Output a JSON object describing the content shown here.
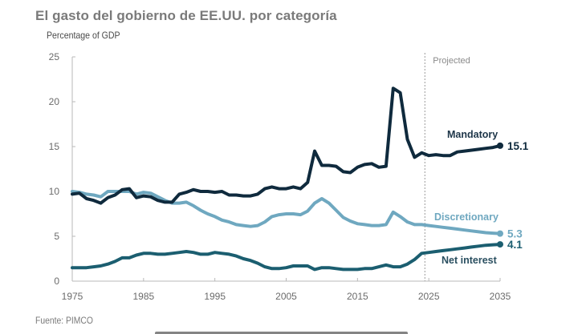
{
  "page": {
    "title": "El gasto del gobierno de EE.UU.  por categoría",
    "source": "Fuente: PIMCO"
  },
  "chart_data": {
    "type": "line",
    "title": "El gasto del gobierno de EE.UU.  por categoría",
    "xlabel": "",
    "ylabel": "Percentage of GDP",
    "xlim": [
      1975,
      2035
    ],
    "ylim": [
      0,
      25
    ],
    "x_ticks": [
      1975,
      1985,
      1995,
      2005,
      2015,
      2025,
      2035
    ],
    "y_ticks": [
      0,
      5,
      10,
      15,
      20,
      25
    ],
    "grid": false,
    "projection_start": 2024,
    "projection_label": "Projected",
    "x": [
      1975,
      1976,
      1977,
      1978,
      1979,
      1980,
      1981,
      1982,
      1983,
      1984,
      1985,
      1986,
      1987,
      1988,
      1989,
      1990,
      1991,
      1992,
      1993,
      1994,
      1995,
      1996,
      1997,
      1998,
      1999,
      2000,
      2001,
      2002,
      2003,
      2004,
      2005,
      2006,
      2007,
      2008,
      2009,
      2010,
      2011,
      2012,
      2013,
      2014,
      2015,
      2016,
      2017,
      2018,
      2019,
      2020,
      2021,
      2022,
      2023,
      2024,
      2025,
      2026,
      2027,
      2028,
      2029,
      2030,
      2031,
      2032,
      2033,
      2034,
      2035
    ],
    "series": [
      {
        "name": "Discretionary",
        "color": "#6fa8c0",
        "end_value_label": "5.3",
        "values": [
          10.0,
          9.9,
          9.7,
          9.6,
          9.4,
          10.0,
          10.0,
          10.0,
          10.0,
          9.7,
          9.9,
          9.8,
          9.4,
          9.0,
          8.7,
          8.7,
          8.8,
          8.4,
          7.9,
          7.5,
          7.2,
          6.8,
          6.6,
          6.3,
          6.2,
          6.1,
          6.2,
          6.6,
          7.2,
          7.4,
          7.5,
          7.5,
          7.4,
          7.8,
          8.7,
          9.2,
          8.7,
          7.9,
          7.1,
          6.7,
          6.4,
          6.3,
          6.2,
          6.2,
          6.3,
          7.7,
          7.2,
          6.6,
          6.3,
          6.3,
          6.2,
          6.1,
          6.0,
          5.9,
          5.8,
          5.7,
          5.6,
          5.5,
          5.4,
          5.35,
          5.3
        ]
      },
      {
        "name": "Net interest",
        "color": "#1b5e70",
        "end_value_label": "4.1",
        "values": [
          1.5,
          1.5,
          1.5,
          1.6,
          1.7,
          1.9,
          2.2,
          2.6,
          2.6,
          2.9,
          3.1,
          3.1,
          3.0,
          3.0,
          3.1,
          3.2,
          3.3,
          3.2,
          3.0,
          3.0,
          3.2,
          3.1,
          3.0,
          2.8,
          2.5,
          2.3,
          2.0,
          1.6,
          1.4,
          1.4,
          1.5,
          1.7,
          1.7,
          1.7,
          1.3,
          1.5,
          1.5,
          1.4,
          1.3,
          1.3,
          1.3,
          1.4,
          1.4,
          1.6,
          1.8,
          1.6,
          1.6,
          1.9,
          2.4,
          3.1,
          3.2,
          3.3,
          3.4,
          3.5,
          3.6,
          3.7,
          3.8,
          3.9,
          4.0,
          4.05,
          4.1
        ]
      },
      {
        "name": "Mandatory",
        "color": "#0f2a3d",
        "end_value_label": "15.1",
        "values": [
          9.7,
          9.8,
          9.2,
          9.0,
          8.7,
          9.3,
          9.6,
          10.2,
          10.3,
          9.3,
          9.5,
          9.4,
          9.0,
          8.8,
          8.8,
          9.7,
          9.9,
          10.2,
          10.0,
          10.0,
          9.9,
          10.0,
          9.6,
          9.6,
          9.5,
          9.5,
          9.7,
          10.3,
          10.5,
          10.3,
          10.3,
          10.5,
          10.3,
          11.0,
          14.5,
          12.9,
          12.9,
          12.8,
          12.2,
          12.1,
          12.7,
          13.0,
          13.1,
          12.7,
          12.8,
          21.5,
          21.0,
          15.8,
          13.8,
          14.3,
          14.0,
          14.1,
          14.0,
          14.0,
          14.4,
          14.5,
          14.6,
          14.7,
          14.8,
          14.9,
          15.1
        ]
      }
    ],
    "annotations": [
      {
        "text": "Mandatory",
        "series": "Mandatory"
      },
      {
        "text": "Discretionary",
        "series": "Discretionary"
      },
      {
        "text": "Net interest",
        "series": "Net interest"
      },
      {
        "text": "Projected",
        "series": null
      }
    ],
    "legend": "inline-labels"
  }
}
